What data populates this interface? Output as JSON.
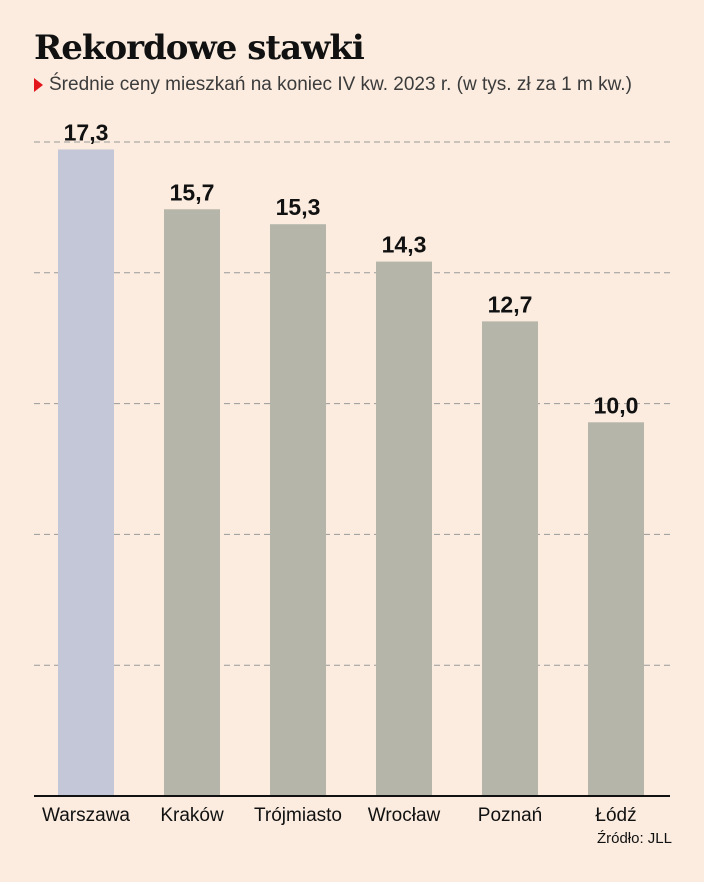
{
  "chart_data": {
    "type": "bar",
    "title": "Rekordowe stawki",
    "subtitle": "Średnie ceny mieszkań na koniec IV kw. 2023 r. (w tys. zł za 1 m kw.)",
    "categories": [
      "Warszawa",
      "Kraków",
      "Trójmiasto",
      "Wrocław",
      "Poznań",
      "Łódź"
    ],
    "values": [
      17.3,
      15.7,
      15.3,
      14.3,
      12.7,
      10.0
    ],
    "value_labels": [
      "17,3",
      "15,7",
      "15,3",
      "14,3",
      "12,7",
      "10,0"
    ],
    "ylim": [
      0,
      17.5
    ],
    "grid": true,
    "colors": {
      "highlight": "#c3c7d7",
      "default": "#b6b5aa",
      "grid": "#9a9a9a",
      "marker": "#e3161c"
    },
    "source": "Źródło: JLL"
  }
}
